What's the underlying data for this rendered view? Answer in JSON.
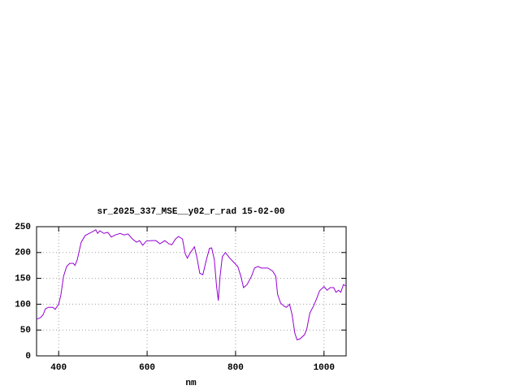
{
  "chart_data": {
    "type": "line",
    "title": "sr_2025_337_MSE__y02_r_rad 15-02-00",
    "xlabel": "nm",
    "color": "#9400d3",
    "x": [
      350,
      359,
      365,
      370,
      377,
      387,
      392,
      400,
      405,
      411,
      418,
      425,
      433,
      437,
      442,
      448,
      451,
      460,
      469,
      478,
      484,
      488,
      493,
      502,
      511,
      519,
      528,
      539,
      548,
      557,
      567,
      576,
      583,
      590,
      598,
      609,
      620,
      629,
      640,
      649,
      656,
      664,
      671,
      680,
      686,
      691,
      698,
      707,
      713,
      719,
      726,
      734,
      741,
      746,
      752,
      757,
      761,
      765,
      770,
      777,
      787,
      796,
      805,
      812,
      818,
      826,
      836,
      843,
      851,
      858,
      873,
      884,
      891,
      895,
      902,
      910,
      915,
      922,
      928,
      934,
      939,
      946,
      956,
      961,
      968,
      976,
      983,
      990,
      1000,
      1007,
      1014,
      1022,
      1027,
      1033,
      1038,
      1044,
      1050
    ],
    "values": [
      71,
      74,
      80,
      91,
      94,
      94,
      90,
      100,
      118,
      154,
      173,
      179,
      179,
      175,
      186,
      209,
      220,
      233,
      237,
      241,
      244,
      237,
      242,
      237,
      239,
      230,
      234,
      237,
      234,
      236,
      226,
      220,
      223,
      214,
      222,
      223,
      223,
      217,
      223,
      217,
      215,
      226,
      231,
      226,
      198,
      189,
      200,
      211,
      189,
      160,
      157,
      186,
      208,
      209,
      186,
      135,
      107,
      154,
      192,
      200,
      189,
      181,
      173,
      154,
      132,
      138,
      154,
      170,
      173,
      170,
      170,
      164,
      154,
      119,
      102,
      96,
      94,
      100,
      79,
      44,
      31,
      33,
      41,
      52,
      83,
      96,
      110,
      126,
      134,
      127,
      132,
      132,
      123,
      127,
      123,
      138,
      135
    ],
    "xlim": [
      350,
      1050
    ],
    "ylim": [
      0,
      250
    ],
    "xticks": [
      400,
      600,
      800,
      1000
    ],
    "yticks": [
      0,
      50,
      100,
      150,
      200,
      250
    ],
    "grid": true
  }
}
